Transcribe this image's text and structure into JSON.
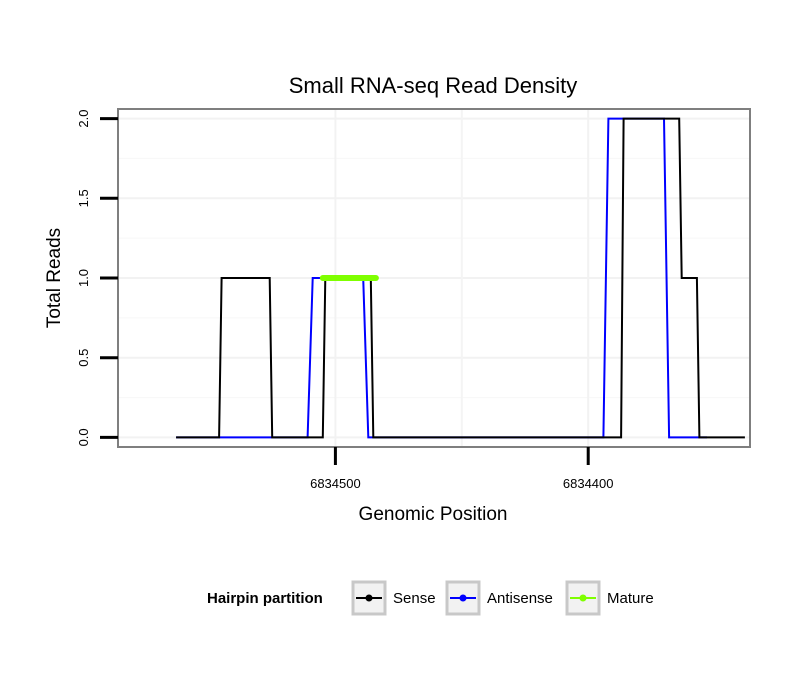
{
  "chart_data": {
    "type": "line",
    "title": "Small RNA-seq Read Density",
    "xlabel": "Genomic Position",
    "ylabel": "Total Reads",
    "x_reversed": true,
    "xlim": [
      6834586,
      6834336
    ],
    "ylim": [
      -0.06,
      2.06
    ],
    "x_ticks": [
      {
        "value": 6834500,
        "label": "6834500"
      },
      {
        "value": 6834400,
        "label": "6834400"
      }
    ],
    "y_ticks": [
      {
        "value": 0,
        "label": "0.0"
      },
      {
        "value": 0.5,
        "label": "0.5"
      },
      {
        "value": 1,
        "label": "1.0"
      },
      {
        "value": 1.5,
        "label": "1.5"
      },
      {
        "value": 2,
        "label": "2.0"
      }
    ],
    "grid": true,
    "legend": {
      "title": "Hairpin partition",
      "position": "bottom",
      "entries": [
        "Sense",
        "Antisense",
        "Mature"
      ]
    },
    "series": [
      {
        "name": "Antisense",
        "color": "#0000ff",
        "x": [
          6834563,
          6834511,
          6834509,
          6834489,
          6834487,
          6834472,
          6834470,
          6834394,
          6834392,
          6834370,
          6834368,
          6834353
        ],
        "y": [
          0,
          0,
          1,
          1,
          0,
          0,
          0,
          0,
          2,
          2,
          0,
          0
        ]
      },
      {
        "name": "Sense",
        "color": "#000000",
        "x": [
          6834563,
          6834546,
          6834545,
          6834526,
          6834525,
          6834505,
          6834504,
          6834500,
          6834499,
          6834486,
          6834485,
          6834387,
          6834386,
          6834364,
          6834363,
          6834357,
          6834356,
          6834338
        ],
        "y": [
          0,
          0,
          1,
          1,
          0,
          0,
          1,
          1,
          1,
          1,
          0,
          0,
          2,
          2,
          1,
          1,
          0,
          0
        ]
      },
      {
        "name": "Mature",
        "color": "#7fff00",
        "x": [
          6834505,
          6834484
        ],
        "y": [
          1,
          1
        ]
      }
    ]
  }
}
